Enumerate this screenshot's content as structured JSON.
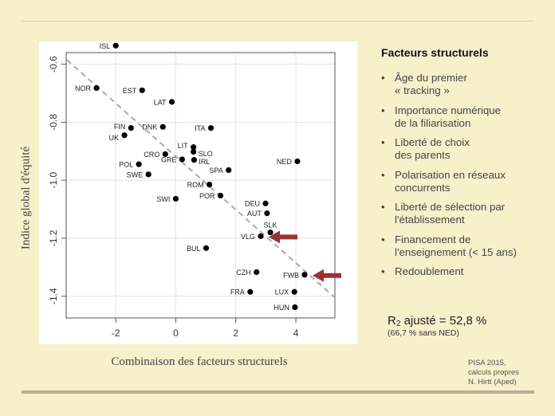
{
  "chart_data": {
    "type": "scatter",
    "xlabel": "Combinaison des facteurs structurels",
    "ylabel": "Indice global d'équité",
    "xlim": [
      -3.65,
      5.3
    ],
    "ylim": [
      -1.475,
      -0.56
    ],
    "xticks": [
      -2,
      0,
      2,
      4
    ],
    "yticks": [
      -0.6,
      -0.8,
      -1.0,
      -1.2,
      -1.4
    ],
    "xtick_labels": [
      "-2",
      "0",
      "2",
      "4"
    ],
    "ytick_labels": [
      "-0.6",
      "-0.8",
      "-1.0",
      "-1.2",
      "-1.4"
    ],
    "grid": true,
    "point_color": "#000000",
    "points": [
      {
        "label": "ISL",
        "x": -2.0,
        "y": -0.536
      },
      {
        "label": "NOR",
        "x": -2.64,
        "y": -0.682
      },
      {
        "label": "EST",
        "x": -1.12,
        "y": -0.69
      },
      {
        "label": "LAT",
        "x": -0.13,
        "y": -0.73
      },
      {
        "label": "DNK",
        "x": -0.43,
        "y": -0.816
      },
      {
        "label": "FIN",
        "x": -1.49,
        "y": -0.82
      },
      {
        "label": "UK",
        "x": -1.71,
        "y": -0.845
      },
      {
        "label": "ITA",
        "x": 1.17,
        "y": -0.82
      },
      {
        "label": "LIT",
        "x": 0.59,
        "y": -0.886
      },
      {
        "label": "SLO",
        "x": 0.59,
        "y": -0.902
      },
      {
        "label": "CRO",
        "x": -0.35,
        "y": -0.91
      },
      {
        "label": "GRE",
        "x": 0.21,
        "y": -0.928
      },
      {
        "label": "IRL",
        "x": 0.61,
        "y": -0.93
      },
      {
        "label": "POL",
        "x": -1.23,
        "y": -0.945
      },
      {
        "label": "SWE",
        "x": -0.91,
        "y": -0.98
      },
      {
        "label": "SPA",
        "x": 1.76,
        "y": -0.965
      },
      {
        "label": "NED",
        "x": 4.05,
        "y": -0.935
      },
      {
        "label": "ROM",
        "x": 1.12,
        "y": -1.015
      },
      {
        "label": "SWI",
        "x": 0.0,
        "y": -1.064
      },
      {
        "label": "POR",
        "x": 1.49,
        "y": -1.053
      },
      {
        "label": "DEU",
        "x": 2.99,
        "y": -1.08
      },
      {
        "label": "AUT",
        "x": 3.04,
        "y": -1.114
      },
      {
        "label": "SLK",
        "x": 3.15,
        "y": -1.18
      },
      {
        "label": "VLG",
        "x": 2.83,
        "y": -1.193
      },
      {
        "label": "BUL",
        "x": 1.01,
        "y": -1.234
      },
      {
        "label": "CZH",
        "x": 2.69,
        "y": -1.317
      },
      {
        "label": "FWB",
        "x": 4.29,
        "y": -1.326
      },
      {
        "label": "FRA",
        "x": 2.48,
        "y": -1.385
      },
      {
        "label": "LUX",
        "x": 3.95,
        "y": -1.385
      },
      {
        "label": "HUN",
        "x": 3.97,
        "y": -1.438
      }
    ],
    "regression_line": {
      "x": [
        -3.63,
        5.28
      ],
      "y": [
        -0.585,
        -1.403
      ],
      "style": "dashed",
      "color": "#aaaaaa"
    },
    "highlight_arrows": {
      "targets": [
        "VLG",
        "FWB"
      ],
      "color": "#9b3232"
    }
  },
  "side": {
    "title": "Facteurs structurels",
    "items": [
      [
        "Âge du premier",
        "« tracking »"
      ],
      [
        "Importance numérique",
        "de la filiarisation"
      ],
      [
        "Liberté de choix",
        "des parents"
      ],
      [
        "Polarisation en réseaux",
        "concurrents"
      ],
      [
        "Liberté de sélection par",
        "l'établissement"
      ],
      [
        "Financement de",
        "l'enseignement (< 15 ans)"
      ],
      [
        "Redoublement"
      ]
    ]
  },
  "stats": {
    "r_prefix": "R",
    "r_sub": "2",
    "r_text": " ajusté = 52,8 %",
    "note": "(66,7 % sans NED)"
  },
  "source": [
    "PISA 2015,",
    "calculs propres",
    "N. Hirtt (Aped)"
  ],
  "colors": {
    "background": "#f8efcb",
    "arrow": "#9b3232"
  }
}
